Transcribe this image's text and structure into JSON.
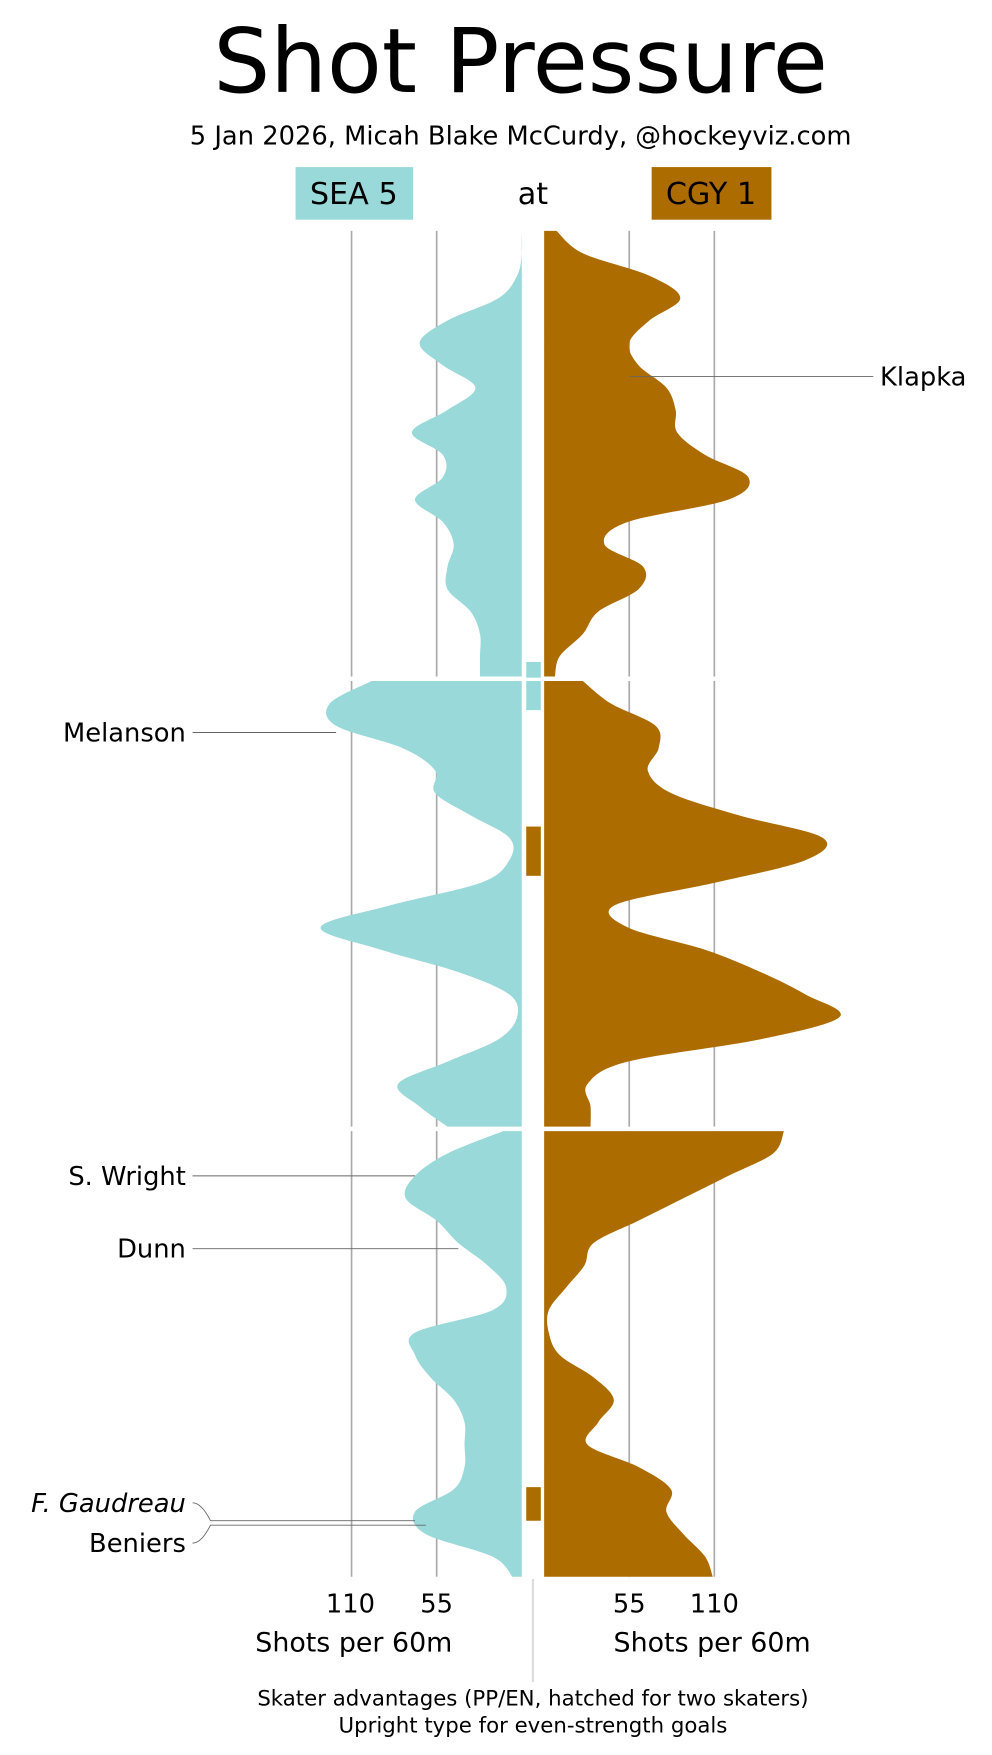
{
  "chart_data": {
    "type": "area",
    "title": "Shot Pressure",
    "subtitle": "5 Jan 2026, Micah Blake McCurdy, @hockeyviz.com",
    "connector": "at",
    "away": {
      "label": "SEA 5",
      "color": "#9ad9da",
      "text_color": "#000000"
    },
    "home": {
      "label": "CGY 1",
      "color": "#ad6c00",
      "text_color": "#ffffff"
    },
    "orientation": "vertical, game time top to bottom, three periods; away extends left, home extends right",
    "x_ticks": {
      "left": [
        "110",
        "55"
      ],
      "right": [
        "55",
        "110"
      ]
    },
    "tick_values": [
      55,
      110
    ],
    "xlabel_left": "Shots per 60m",
    "xlabel_right": "Shots per 60m",
    "minutes_per_period": 20,
    "sample_minutes": [
      0,
      1,
      2,
      3,
      4,
      5,
      6,
      7,
      8,
      9,
      10,
      11,
      12,
      13,
      14,
      15,
      16,
      17,
      18,
      19,
      20
    ],
    "periods": [
      {
        "away": [
          0,
          0,
          3,
          15,
          48,
          66,
          51,
          30,
          48,
          71,
          51,
          51,
          69,
          51,
          44,
          48,
          48,
          33,
          27,
          27,
          27
        ],
        "home": [
          8,
          25,
          68,
          88,
          68,
          55,
          61,
          79,
          85,
          86,
          104,
          132,
          119,
          54,
          39,
          64,
          61,
          35,
          25,
          10,
          7
        ]
      },
      {
        "away": [
          97,
          124,
          120,
          77,
          56,
          56,
          33,
          8,
          8,
          26,
          84,
          130,
          91,
          41,
          8,
          3,
          15,
          48,
          80,
          66,
          48
        ],
        "home": [
          25,
          43,
          72,
          74,
          67,
          82,
          126,
          180,
          169,
          111,
          46,
          54,
          104,
          140,
          169,
          191,
          140,
          54,
          28,
          30,
          30
        ]
      },
      {
        "away": [
          12,
          48,
          69,
          75,
          55,
          41,
          22,
          10,
          19,
          69,
          69,
          59,
          44,
          37,
          37,
          37,
          44,
          69,
          62,
          19,
          6
        ],
        "home": [
          155,
          148,
          119,
          90,
          61,
          32,
          26,
          14,
          3,
          3,
          10,
          32,
          45,
          35,
          28,
          61,
          82,
          79,
          90,
          104,
          109
        ]
      }
    ],
    "skater_advantages": [
      {
        "team": "away",
        "period": 1,
        "start_min": 19.25,
        "end_min": 20
      },
      {
        "team": "away",
        "period": 2,
        "start_min": 0,
        "end_min": 1.3
      },
      {
        "team": "home",
        "period": 2,
        "start_min": 6.5,
        "end_min": 8.7
      },
      {
        "team": "home",
        "period": 3,
        "start_min": 15.9,
        "end_min": 17.4
      }
    ],
    "goals": [
      {
        "team": "home",
        "period": 1,
        "minute": 6.5,
        "scorer": "Klapka",
        "even_strength": true
      },
      {
        "team": "away",
        "period": 2,
        "minute": 2.3,
        "scorer": "Melanson",
        "even_strength": true
      },
      {
        "team": "away",
        "period": 3,
        "minute": 2.0,
        "scorer": "S. Wright",
        "even_strength": true
      },
      {
        "team": "away",
        "period": 3,
        "minute": 5.25,
        "scorer": "Dunn",
        "even_strength": true
      },
      {
        "team": "away",
        "period": 3,
        "minute": 17.4,
        "scorer": "F. Gaudreau",
        "even_strength": false
      },
      {
        "team": "away",
        "period": 3,
        "minute": 17.6,
        "scorer": "Beniers",
        "even_strength": true
      }
    ],
    "footer": [
      "Skater advantages (PP/EN, hatched for two skaters)",
      "Upright type for even-strength goals"
    ],
    "grid_color": "#aaaaaa"
  }
}
